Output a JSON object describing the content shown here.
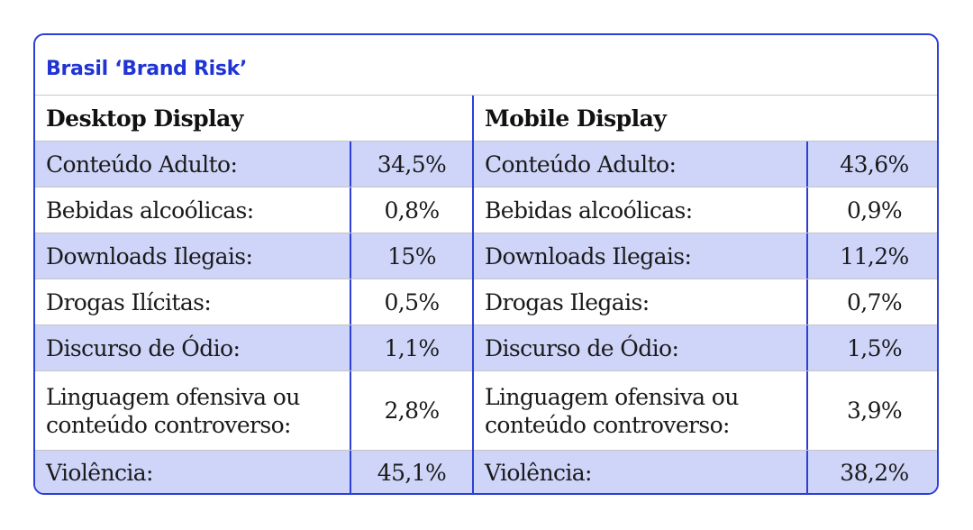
{
  "title": "Brasil ‘Brand Risk’",
  "desktop": {
    "heading": "Desktop Display",
    "rows": [
      {
        "label": "Conteúdo Adulto:",
        "value": "34,5%"
      },
      {
        "label": "Bebidas alcoólicas:",
        "value": "0,8%"
      },
      {
        "label": "Downloads Ilegais:",
        "value": "15%"
      },
      {
        "label": "Drogas Ilícitas:",
        "value": "0,5%"
      },
      {
        "label": "Discurso de Ódio:",
        "value": "1,1%"
      },
      {
        "label_line1": "Linguagem ofensiva ou",
        "label_line2": "conteúdo controverso:",
        "value": "2,8%"
      },
      {
        "label": "Violência:",
        "value": "45,1%"
      }
    ]
  },
  "mobile": {
    "heading": "Mobile Display",
    "rows": [
      {
        "label": "Conteúdo Adulto:",
        "value": "43,6%"
      },
      {
        "label": "Bebidas alcoólicas:",
        "value": "0,9%"
      },
      {
        "label": "Downloads Ilegais:",
        "value": "11,2%"
      },
      {
        "label": "Drogas Ilegais:",
        "value": "0,7%"
      },
      {
        "label": "Discurso de Ódio:",
        "value": "1,5%"
      },
      {
        "label_line1": "Linguagem ofensiva ou",
        "label_line2": "conteúdo controverso:",
        "value": "3,9%"
      },
      {
        "label": "Violência:",
        "value": "38,2%"
      }
    ]
  },
  "colors": {
    "accent": "#2b3fd6",
    "row_shade": "#cfd5f9"
  }
}
